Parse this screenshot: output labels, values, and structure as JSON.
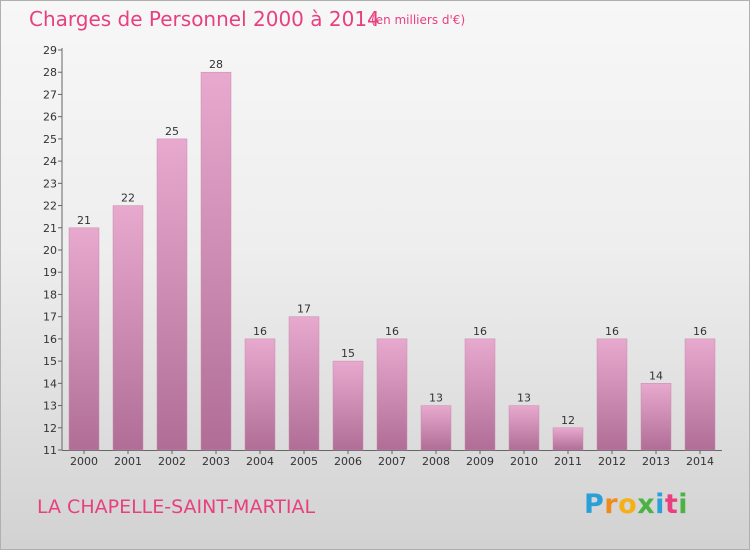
{
  "title": "Charges de Personnel 2000 à 2014",
  "subtitle": "(en milliers d'€)",
  "place": "LA CHAPELLE-SAINT-MARTIAL",
  "logo": {
    "p": "P",
    "r": "r",
    "o": "o",
    "x": "x",
    "i1": "i",
    "t": "t",
    "i2": "i"
  },
  "chart_data": {
    "type": "bar",
    "categories": [
      "2000",
      "2001",
      "2002",
      "2003",
      "2004",
      "2005",
      "2006",
      "2007",
      "2008",
      "2009",
      "2010",
      "2011",
      "2012",
      "2013",
      "2014"
    ],
    "values": [
      21,
      22,
      25,
      28,
      16,
      17,
      15,
      16,
      13,
      16,
      13,
      12,
      16,
      14,
      16
    ],
    "ylim": [
      11,
      29
    ],
    "yticks": [
      11,
      12,
      13,
      14,
      15,
      16,
      17,
      18,
      19,
      20,
      21,
      22,
      23,
      24,
      25,
      26,
      27,
      28,
      29
    ],
    "grid": false,
    "bar_color_top": "#e8a9cf",
    "bar_color_bottom": "#b06e96"
  }
}
